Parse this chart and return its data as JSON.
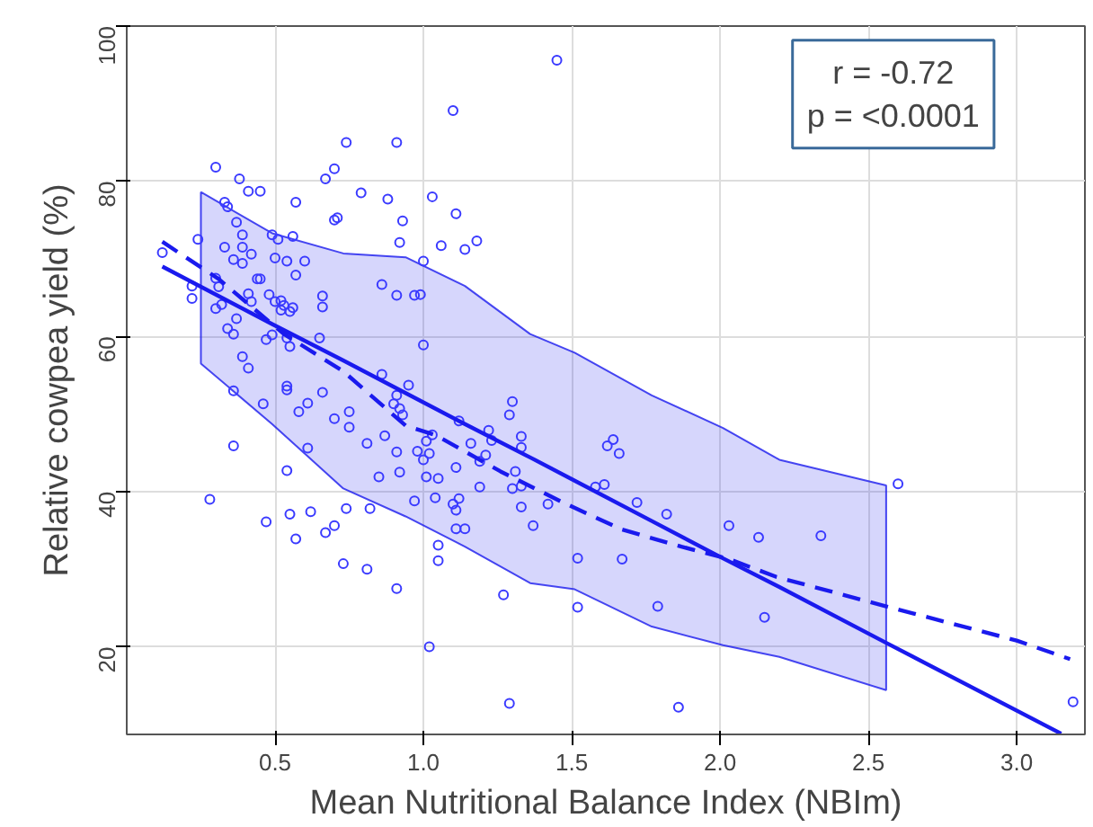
{
  "chart_data": {
    "type": "scatter",
    "xlabel": "Mean Nutritional Balance Index (NBIm)",
    "ylabel": "Relative cowpea yield (%)",
    "xlim": [
      0,
      3.23
    ],
    "ylim": [
      8.7,
      100
    ],
    "xticks": [
      0.5,
      {
        "value": 1,
        "label": "1.0"
      },
      1.5,
      {
        "value": 2,
        "label": "2.0"
      },
      2.5,
      {
        "value": 3,
        "label": "3.0"
      }
    ],
    "yticks": [
      20,
      40,
      60,
      80,
      100
    ],
    "grid": true,
    "annotations": [
      "r = -0.72\np = <0.0001"
    ],
    "series": [
      {
        "marker": "circle",
        "color": "#3a3aff",
        "x": [
          0.12,
          0.24,
          0.22,
          0.22,
          0.3,
          0.38,
          0.41,
          0.45,
          0.33,
          0.34,
          0.37,
          0.39,
          0.39,
          0.33,
          0.36,
          0.39,
          0.42,
          0.3,
          0.31,
          0.3,
          0.32,
          0.37,
          0.34,
          0.36,
          0.39,
          0.41,
          0.36,
          0.36,
          0.28,
          0.44,
          0.45,
          0.41,
          0.42,
          0.49,
          0.51,
          0.56,
          0.5,
          0.54,
          0.6,
          0.57,
          0.48,
          0.5,
          0.52,
          0.53,
          0.56,
          0.52,
          0.55,
          0.47,
          0.49,
          0.54,
          0.55,
          0.65,
          0.66,
          0.66,
          0.57,
          0.7,
          0.74,
          0.67,
          0.71,
          0.7,
          0.79,
          0.88,
          0.91,
          0.93,
          0.92,
          0.86,
          0.91,
          0.97,
          0.99,
          1.0,
          1.03,
          1.11,
          1.06,
          1.0,
          0.54,
          0.54,
          0.66,
          0.61,
          0.58,
          0.7,
          0.75,
          0.75,
          0.61,
          0.81,
          0.87,
          0.86,
          0.95,
          0.91,
          0.9,
          0.92,
          0.93,
          0.91,
          0.92,
          0.85,
          0.97,
          0.98,
          1.0,
          1.02,
          1.01,
          1.03,
          1.01,
          1.05,
          1.04,
          1.1,
          1.11,
          1.12,
          1.11,
          1.05,
          1.05,
          1.12,
          1.11,
          0.46,
          0.54,
          0.47,
          0.55,
          0.62,
          0.57,
          0.7,
          0.67,
          0.74,
          0.82,
          0.73,
          0.81,
          0.91,
          1.02,
          1.1,
          1.45,
          1.18,
          1.14,
          1.14,
          1.16,
          1.22,
          1.23,
          1.21,
          1.19,
          1.29,
          1.3,
          1.33,
          1.33,
          1.31,
          1.3,
          1.33,
          1.33,
          1.37,
          1.42,
          1.27,
          1.29,
          1.19,
          1.52,
          1.52,
          1.58,
          1.61,
          1.62,
          1.64,
          1.66,
          1.72,
          1.82,
          1.67,
          1.79,
          1.86,
          2.03,
          2.13,
          2.15,
          2.34,
          2.6,
          3.19
        ],
        "values": [
          70.8,
          72.5,
          66.5,
          64.9,
          81.8,
          80.3,
          78.7,
          78.7,
          77.3,
          76.7,
          74.7,
          73.1,
          71.5,
          71.5,
          69.9,
          69.4,
          70.6,
          67.5,
          66.4,
          63.6,
          64.1,
          62.3,
          61.0,
          60.3,
          57.4,
          55.9,
          53.0,
          45.9,
          39.0,
          67.4,
          67.4,
          65.5,
          64.5,
          73.1,
          72.5,
          72.9,
          70.1,
          69.7,
          69.7,
          67.9,
          65.4,
          64.5,
          64.6,
          64.0,
          63.7,
          63.4,
          63.2,
          59.6,
          60.2,
          59.8,
          58.7,
          59.8,
          63.8,
          65.2,
          77.3,
          81.6,
          85.0,
          80.3,
          75.3,
          75.0,
          78.5,
          77.7,
          85.0,
          74.9,
          72.1,
          66.7,
          65.3,
          65.3,
          65.4,
          58.9,
          78.0,
          75.8,
          71.7,
          69.7,
          53.6,
          53.1,
          52.8,
          51.4,
          50.3,
          49.4,
          50.3,
          48.3,
          45.6,
          46.2,
          47.2,
          55.1,
          53.7,
          52.4,
          51.3,
          50.7,
          49.9,
          45.1,
          42.5,
          41.9,
          38.8,
          45.2,
          44.1,
          44.9,
          46.5,
          47.3,
          41.9,
          41.7,
          39.2,
          38.4,
          37.6,
          39.1,
          35.2,
          33.1,
          31.1,
          49.1,
          43.1,
          51.3,
          42.7,
          36.1,
          37.1,
          37.4,
          33.9,
          35.6,
          34.7,
          37.8,
          37.8,
          30.7,
          30.0,
          27.5,
          20.0,
          89.1,
          95.6,
          72.3,
          71.2,
          35.2,
          46.2,
          47.9,
          46.6,
          44.7,
          43.9,
          49.9,
          51.6,
          47.1,
          45.7,
          42.6,
          40.4,
          40.7,
          38.0,
          35.6,
          38.4,
          26.7,
          12.7,
          40.6,
          31.4,
          25.1,
          40.6,
          40.9,
          45.9,
          46.7,
          44.9,
          38.6,
          37.1,
          31.3,
          25.2,
          12.2,
          35.6,
          34.1,
          23.8,
          34.3,
          41.0,
          12.9
        ]
      },
      {
        "type": "line",
        "line_style": "solid",
        "color": "#1a1aee",
        "x": [
          0.12,
          0.25,
          0.49,
          0.73,
          0.94,
          1.14,
          1.36,
          1.51,
          1.77,
          2.01,
          2.2,
          2.56,
          3.15
        ],
        "values": [
          69.0,
          66.4,
          61.6,
          56.9,
          52.7,
          48.7,
          44.4,
          41.4,
          36.2,
          31.4,
          27.7,
          20.5,
          8.8
        ],
        "upper": [
          null,
          78.6,
          73.3,
          70.7,
          70.2,
          66.5,
          60.3,
          57.9,
          52.4,
          48.2,
          44.1,
          40.8,
          null
        ],
        "lower": [
          null,
          56.5,
          48.7,
          40.4,
          36.8,
          32.9,
          28.2,
          27.4,
          22.6,
          20.2,
          18.7,
          14.4,
          null
        ]
      },
      {
        "type": "line",
        "line_style": "dashed",
        "color": "#1a1aee",
        "x": [
          0.12,
          0.31,
          0.53,
          0.73,
          0.94,
          1.04,
          1.26,
          1.47,
          1.67,
          1.87,
          2.03,
          2.19,
          2.59,
          3.0,
          3.18
        ],
        "values": [
          72.2,
          67.4,
          60.3,
          55.5,
          48.5,
          47.3,
          42.6,
          38.6,
          35.1,
          32.9,
          31.3,
          29.0,
          24.9,
          20.8,
          18.4
        ]
      }
    ]
  }
}
